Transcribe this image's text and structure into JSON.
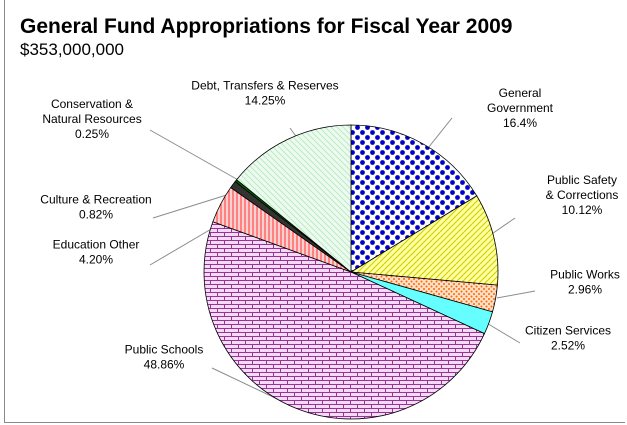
{
  "title": "General Fund Appropriations for Fiscal Year 2009",
  "subtitle": "$353,000,000",
  "chart_data": {
    "type": "pie",
    "title": "General Fund Appropriations for Fiscal Year 2009",
    "subtitle": "$353,000,000",
    "legend": "none",
    "slices": [
      {
        "name": "General Government",
        "label_lines": [
          "General",
          "Government"
        ],
        "value_label": "16.4%",
        "value": 16.4,
        "color": "#0000cc",
        "pattern": "dots"
      },
      {
        "name": "Public Safety & Corrections",
        "label_lines": [
          "Public Safety",
          "& Corrections"
        ],
        "value_label": "10.12%",
        "value": 10.12,
        "color": "#e6e600",
        "pattern": "diag-up"
      },
      {
        "name": "Public Works",
        "label_lines": [
          "Public Works"
        ],
        "value_label": "2.96%",
        "value": 2.96,
        "color": "#ff6600",
        "pattern": "dots-small"
      },
      {
        "name": "Citizen Services",
        "label_lines": [
          "Citizen Services"
        ],
        "value_label": "2.52%",
        "value": 2.52,
        "color": "#66ffff",
        "pattern": "solid"
      },
      {
        "name": "Public Schools",
        "label_lines": [
          "Public Schools"
        ],
        "value_label": "48.86%",
        "value": 48.86,
        "color": "#993399",
        "pattern": "brick"
      },
      {
        "name": "Education Other",
        "label_lines": [
          "Education Other"
        ],
        "value_label": "4.20%",
        "value": 4.2,
        "color": "#ff3333",
        "pattern": "vertical"
      },
      {
        "name": "Culture & Recreation",
        "label_lines": [
          "Culture & Recreation"
        ],
        "value_label": "0.82%",
        "value": 0.82,
        "color": "#333333",
        "pattern": "solid"
      },
      {
        "name": "Conservation & Natural Resources",
        "label_lines": [
          "Conservation &",
          "Natural Resources"
        ],
        "value_label": "0.25%",
        "value": 0.25,
        "color": "#006600",
        "pattern": "solid"
      },
      {
        "name": "Debt, Transfers & Reserves",
        "label_lines": [
          "Debt, Transfers & Reserves"
        ],
        "value_label": "14.25%",
        "value": 14.25,
        "color": "#00aa44",
        "pattern": "diag-down"
      }
    ]
  }
}
